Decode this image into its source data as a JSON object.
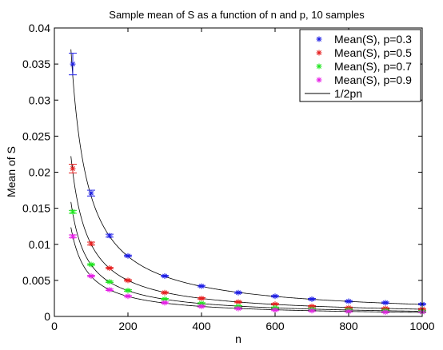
{
  "chart_data": {
    "type": "scatter",
    "title": "Sample mean of S as a function of n and p, 10 samples",
    "xlabel": "n",
    "ylabel": "Mean of S",
    "xlim": [
      0,
      1000
    ],
    "ylim": [
      0,
      0.04
    ],
    "xticks": [
      0,
      200,
      400,
      600,
      800,
      1000
    ],
    "xtick_labels": [
      "0",
      "200",
      "400",
      "600",
      "800",
      "1000"
    ],
    "yticks": [
      0,
      0.005,
      0.01,
      0.015,
      0.02,
      0.025,
      0.03,
      0.035,
      0.04
    ],
    "ytick_labels": [
      "0",
      "0.005",
      "0.01",
      "0.015",
      "0.02",
      "0.025",
      "0.03",
      "0.035",
      "0.04"
    ],
    "legend_position": "top-right",
    "grid": false,
    "x": [
      50,
      100,
      150,
      200,
      300,
      400,
      500,
      600,
      700,
      800,
      900,
      1000
    ],
    "series": [
      {
        "name": "Mean(S), p=0.3",
        "marker": "*",
        "color": "#1f1fe6",
        "p": 0.3,
        "values": [
          0.035,
          0.0171,
          0.0112,
          0.0084,
          0.0056,
          0.0042,
          0.0033,
          0.0028,
          0.0024,
          0.0021,
          0.0019,
          0.0017
        ],
        "err": [
          0.0015,
          0.0004,
          0.0002,
          0.0001,
          0.0001,
          0.0001,
          0.0001,
          0.0001,
          0.0001,
          0.0001,
          0.0001,
          0.0001
        ]
      },
      {
        "name": "Mean(S), p=0.5",
        "marker": "*",
        "color": "#e61f1f",
        "p": 0.5,
        "values": [
          0.0205,
          0.0101,
          0.0067,
          0.005,
          0.0033,
          0.0025,
          0.002,
          0.0017,
          0.0014,
          0.0012,
          0.0011,
          0.001
        ],
        "err": [
          0.0006,
          0.0002,
          0.0001,
          0.0001,
          0.0001,
          0.0001,
          0.0001,
          0.0001,
          0.0001,
          0.0001,
          0.0001,
          0.0001
        ]
      },
      {
        "name": "Mean(S), p=0.7",
        "marker": "*",
        "color": "#1fe61f",
        "p": 0.7,
        "values": [
          0.0145,
          0.0072,
          0.0048,
          0.0036,
          0.0024,
          0.0018,
          0.0014,
          0.0012,
          0.001,
          0.0009,
          0.0008,
          0.0007
        ],
        "err": [
          0.0002,
          0.0001,
          0.0001,
          0.0001,
          0.0001,
          0.0001,
          0.0001,
          0.0001,
          0.0001,
          0.0001,
          0.0001,
          0.0001
        ]
      },
      {
        "name": "Mean(S), p=0.9",
        "marker": "*",
        "color": "#e61fe6",
        "p": 0.9,
        "values": [
          0.0111,
          0.0056,
          0.0037,
          0.0028,
          0.0019,
          0.0014,
          0.0011,
          0.0009,
          0.0008,
          0.0007,
          0.0006,
          0.0006
        ],
        "err": [
          0.0002,
          0.0001,
          0.0001,
          0.0001,
          0.0001,
          0.0001,
          0.0001,
          0.0001,
          0.0001,
          0.0001,
          0.0001,
          0.0001
        ]
      }
    ],
    "reference_curve": {
      "name": "1/2pn",
      "color": "#000000"
    }
  }
}
